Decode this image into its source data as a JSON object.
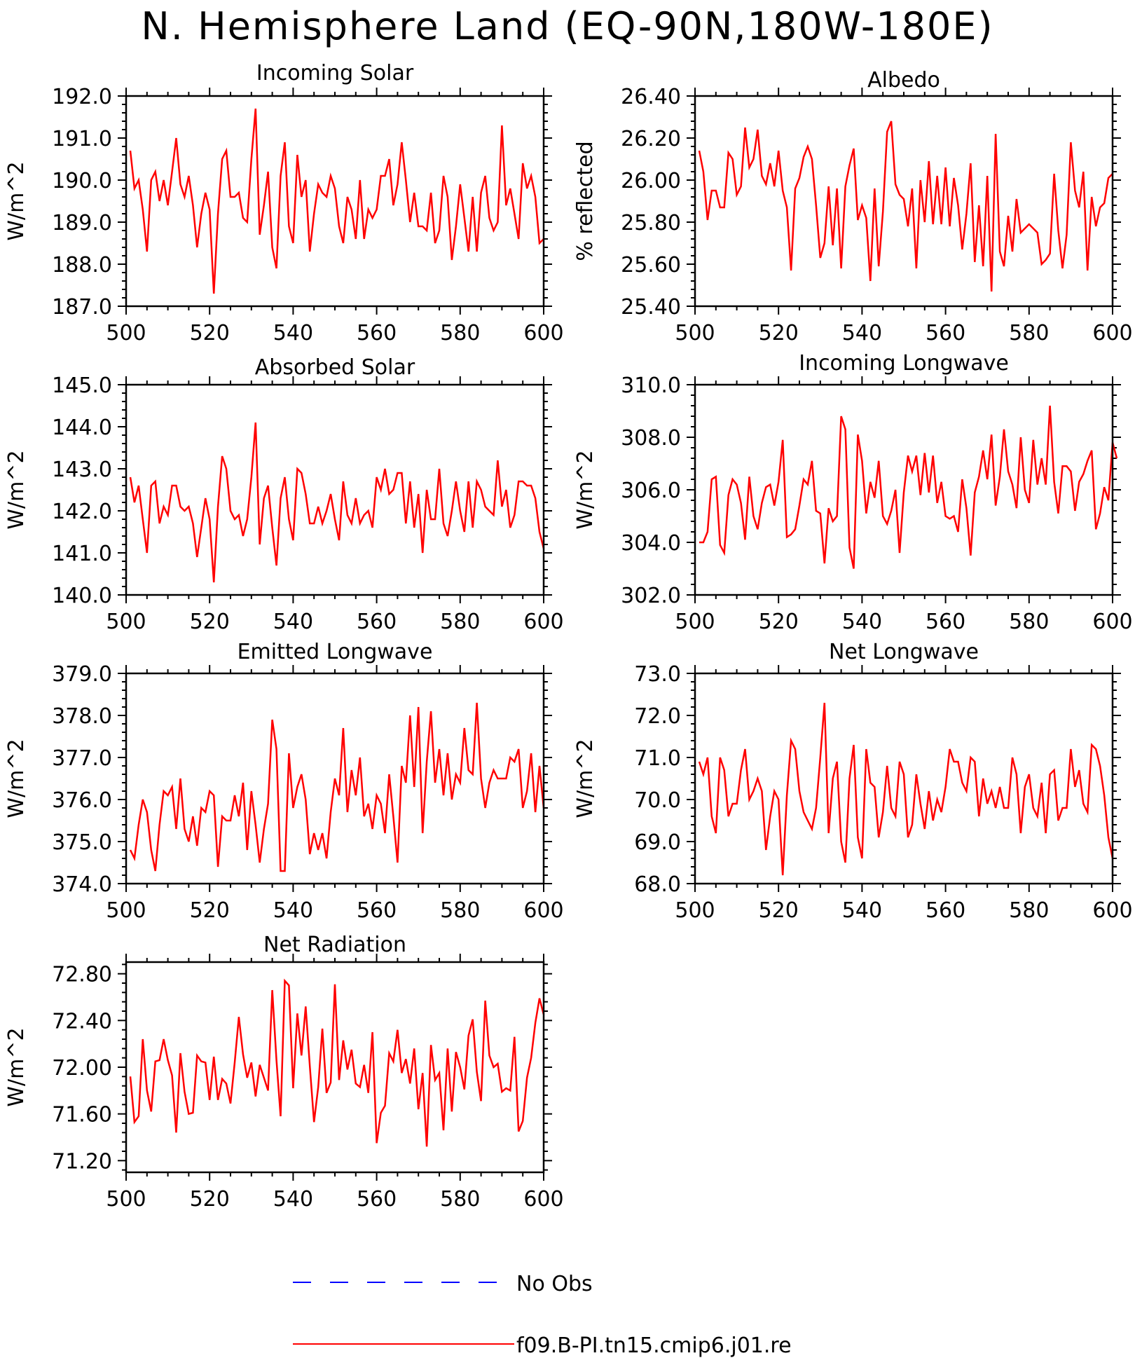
{
  "title": "N. Hemisphere Land (EQ-90N,180W-180E)",
  "colors": {
    "model": "#ff0000",
    "obs": "#0000ff",
    "axis": "#000000"
  },
  "legend": {
    "obs_label": "No Obs",
    "model_label": "f09.B-PI.tn15.cmip6.j01.re"
  },
  "chart_data": [
    {
      "type": "line",
      "title": "Incoming Solar",
      "xlabel": "",
      "ylabel": "W/m^2",
      "xlim": [
        500,
        600
      ],
      "ylim": [
        187.0,
        192.0
      ],
      "xticks": [
        "500",
        "520",
        "540",
        "560",
        "580",
        "600"
      ],
      "yticks": [
        "187.0",
        "188.0",
        "189.0",
        "190.0",
        "191.0",
        "192.0"
      ],
      "series": [
        {
          "x_start": 501,
          "values": [
            190.7,
            189.8,
            190.0,
            189.3,
            188.3,
            190.0,
            190.2,
            189.5,
            190.0,
            189.4,
            190.2,
            191.0,
            189.9,
            189.6,
            190.1,
            189.4,
            188.4,
            189.2,
            189.7,
            189.3,
            187.3,
            189.2,
            190.5,
            190.7,
            189.6,
            189.6,
            189.7,
            189.1,
            189.0,
            190.5,
            191.7,
            188.7,
            189.4,
            190.2,
            188.4,
            187.9,
            190.1,
            190.9,
            188.9,
            188.5,
            190.6,
            189.6,
            190.0,
            188.3,
            189.2,
            189.9,
            189.7,
            189.6,
            190.1,
            189.8,
            188.9,
            188.5,
            189.6,
            189.3,
            188.6,
            190.0,
            188.6,
            189.3,
            189.1,
            189.3,
            190.1,
            190.1,
            190.5,
            189.4,
            189.9,
            190.9,
            190.0,
            189.0,
            189.7,
            188.9,
            188.9,
            188.8,
            189.7,
            188.5,
            188.8,
            190.1,
            189.6,
            188.1,
            188.9,
            189.9,
            189.1,
            188.3,
            189.6,
            188.3,
            189.7,
            190.1,
            189.1,
            188.8,
            189.0,
            191.3,
            189.4,
            189.8,
            189.2,
            188.6,
            190.4,
            189.8,
            190.1,
            189.6,
            188.5,
            188.6
          ]
        }
      ]
    },
    {
      "type": "line",
      "title": "Albedo",
      "xlabel": "",
      "ylabel": "% reflected",
      "xlim": [
        500,
        600
      ],
      "ylim": [
        25.4,
        26.4
      ],
      "xticks": [
        "500",
        "520",
        "540",
        "560",
        "580",
        "600"
      ],
      "yticks": [
        "25.40",
        "25.60",
        "25.80",
        "26.00",
        "26.20",
        "26.40"
      ],
      "series": [
        {
          "x_start": 501,
          "values": [
            26.14,
            26.04,
            25.81,
            25.95,
            25.95,
            25.87,
            25.87,
            26.13,
            26.1,
            25.93,
            25.97,
            26.25,
            26.06,
            26.1,
            26.24,
            26.02,
            25.98,
            26.08,
            25.97,
            26.14,
            25.95,
            25.87,
            25.57,
            25.96,
            26.01,
            26.11,
            26.16,
            26.1,
            25.88,
            25.63,
            25.7,
            25.97,
            25.69,
            25.96,
            25.58,
            25.97,
            26.07,
            26.15,
            25.81,
            25.88,
            25.82,
            25.52,
            25.96,
            25.59,
            25.85,
            26.23,
            26.28,
            25.98,
            25.93,
            25.91,
            25.78,
            25.96,
            25.58,
            26.0,
            25.8,
            26.09,
            25.79,
            26.02,
            25.79,
            26.06,
            25.78,
            26.01,
            25.88,
            25.67,
            25.84,
            26.08,
            25.61,
            25.88,
            25.59,
            26.02,
            25.47,
            26.22,
            25.66,
            25.59,
            25.83,
            25.66,
            25.91,
            25.75,
            25.77,
            25.79,
            25.77,
            25.75,
            25.6,
            25.62,
            25.65,
            26.03,
            25.76,
            25.58,
            25.74,
            26.18,
            25.95,
            25.87,
            26.04,
            25.57,
            25.92,
            25.78,
            25.87,
            25.89,
            26.01,
            26.03
          ]
        }
      ]
    },
    {
      "type": "line",
      "title": "Absorbed Solar",
      "xlabel": "",
      "ylabel": "W/m^2",
      "xlim": [
        500,
        600
      ],
      "ylim": [
        140.0,
        145.0
      ],
      "xticks": [
        "500",
        "520",
        "540",
        "560",
        "580",
        "600"
      ],
      "yticks": [
        "140.0",
        "141.0",
        "142.0",
        "143.0",
        "144.0",
        "145.0"
      ],
      "series": [
        {
          "x_start": 501,
          "values": [
            142.8,
            142.2,
            142.6,
            141.8,
            141.0,
            142.6,
            142.7,
            141.7,
            142.1,
            141.9,
            142.6,
            142.6,
            142.1,
            142.0,
            142.1,
            141.7,
            140.9,
            141.6,
            142.3,
            141.8,
            140.3,
            142.1,
            143.3,
            143.0,
            142.0,
            141.8,
            141.9,
            141.4,
            141.8,
            142.8,
            144.1,
            141.2,
            142.3,
            142.6,
            141.6,
            140.7,
            142.3,
            142.8,
            141.8,
            141.3,
            143.0,
            142.9,
            142.4,
            141.7,
            141.7,
            142.1,
            141.7,
            142.0,
            142.4,
            141.8,
            141.3,
            142.7,
            141.9,
            141.7,
            142.3,
            141.7,
            141.9,
            142.0,
            141.6,
            142.8,
            142.5,
            143.0,
            142.4,
            142.5,
            142.9,
            142.9,
            141.7,
            142.7,
            141.6,
            142.4,
            141.0,
            142.5,
            141.8,
            141.8,
            143.0,
            141.7,
            141.4,
            142.0,
            142.7,
            142.0,
            141.5,
            142.7,
            141.6,
            142.7,
            142.5,
            142.1,
            142.0,
            141.9,
            143.2,
            142.1,
            142.5,
            141.6,
            141.9,
            142.7,
            142.7,
            142.6,
            142.6,
            142.3,
            141.5,
            141.1
          ]
        }
      ]
    },
    {
      "type": "line",
      "title": "Incoming Longwave",
      "xlabel": "",
      "ylabel": "W/m^2",
      "xlim": [
        500,
        600
      ],
      "ylim": [
        302.0,
        310.0
      ],
      "xticks": [
        "500",
        "520",
        "540",
        "560",
        "580",
        "600"
      ],
      "yticks": [
        "302.0",
        "304.0",
        "306.0",
        "308.0",
        "310.0"
      ],
      "series": [
        {
          "x_start": 501,
          "values": [
            304.0,
            304.0,
            304.4,
            306.4,
            306.5,
            303.9,
            303.6,
            305.8,
            306.4,
            306.2,
            305.5,
            304.1,
            306.5,
            305.0,
            304.5,
            305.5,
            306.1,
            306.2,
            305.4,
            306.3,
            307.9,
            304.2,
            304.3,
            304.5,
            305.4,
            306.4,
            306.2,
            307.1,
            305.2,
            305.1,
            303.2,
            305.3,
            304.8,
            305.0,
            308.8,
            308.3,
            303.8,
            303.0,
            308.1,
            307.1,
            305.1,
            306.3,
            305.7,
            307.1,
            305.0,
            304.7,
            305.2,
            306.0,
            303.6,
            305.9,
            307.3,
            306.7,
            307.3,
            305.8,
            307.4,
            305.9,
            307.3,
            305.5,
            306.3,
            305.0,
            304.9,
            305.0,
            304.4,
            306.4,
            305.3,
            303.5,
            305.9,
            306.5,
            307.5,
            306.4,
            308.1,
            305.4,
            306.5,
            308.3,
            306.7,
            306.2,
            305.3,
            308.0,
            306.0,
            305.5,
            307.9,
            306.2,
            307.2,
            306.2,
            309.2,
            306.3,
            305.1,
            306.9,
            306.9,
            306.7,
            305.2,
            306.3,
            306.6,
            307.1,
            307.5,
            304.5,
            305.1,
            306.1,
            305.6,
            307.8,
            307.2
          ]
        }
      ]
    },
    {
      "type": "line",
      "title": "Emitted Longwave",
      "xlabel": "",
      "ylabel": "W/m^2",
      "xlim": [
        500,
        600
      ],
      "ylim": [
        374.0,
        379.0
      ],
      "xticks": [
        "500",
        "520",
        "540",
        "560",
        "580",
        "600"
      ],
      "yticks": [
        "374.0",
        "375.0",
        "376.0",
        "377.0",
        "378.0",
        "379.0"
      ],
      "series": [
        {
          "x_start": 501,
          "values": [
            374.8,
            374.6,
            375.4,
            376.0,
            375.7,
            374.8,
            374.3,
            375.4,
            376.2,
            376.1,
            376.3,
            375.3,
            376.5,
            375.3,
            375.0,
            375.6,
            374.9,
            375.8,
            375.7,
            376.2,
            376.1,
            374.4,
            375.6,
            375.5,
            375.5,
            376.1,
            375.6,
            376.4,
            374.8,
            376.2,
            375.4,
            374.5,
            375.3,
            375.9,
            377.9,
            377.2,
            374.3,
            374.3,
            377.1,
            375.8,
            376.3,
            376.6,
            376.0,
            374.7,
            375.2,
            374.8,
            375.2,
            374.6,
            375.7,
            376.5,
            376.1,
            377.7,
            375.7,
            376.7,
            376.1,
            377.0,
            375.6,
            375.9,
            375.3,
            376.1,
            375.9,
            375.2,
            376.6,
            375.6,
            374.5,
            376.8,
            376.4,
            378.0,
            376.3,
            378.2,
            375.2,
            376.9,
            378.1,
            376.4,
            377.2,
            376.1,
            377.1,
            376.0,
            376.6,
            376.4,
            377.7,
            376.7,
            376.6,
            378.3,
            376.5,
            375.8,
            376.4,
            376.7,
            376.5,
            376.5,
            376.5,
            377.0,
            376.9,
            377.2,
            375.8,
            376.2,
            377.1,
            375.7,
            376.8,
            375.8
          ]
        }
      ]
    },
    {
      "type": "line",
      "title": "Net Longwave",
      "xlabel": "",
      "ylabel": "W/m^2",
      "xlim": [
        500,
        600
      ],
      "ylim": [
        68.0,
        73.0
      ],
      "xticks": [
        "500",
        "520",
        "540",
        "560",
        "580",
        "600"
      ],
      "yticks": [
        "68.0",
        "69.0",
        "70.0",
        "71.0",
        "72.0",
        "73.0"
      ],
      "series": [
        {
          "x_start": 501,
          "values": [
            70.9,
            70.6,
            71.0,
            69.6,
            69.2,
            71.0,
            70.7,
            69.6,
            69.9,
            69.9,
            70.7,
            71.2,
            70.0,
            70.2,
            70.5,
            70.2,
            68.8,
            69.6,
            70.2,
            70.0,
            68.2,
            70.1,
            71.4,
            71.2,
            70.2,
            69.7,
            69.5,
            69.3,
            69.8,
            71.0,
            72.3,
            69.2,
            70.5,
            70.9,
            69.0,
            68.5,
            70.5,
            71.3,
            69.1,
            68.6,
            71.2,
            70.4,
            70.3,
            69.1,
            69.7,
            70.8,
            69.8,
            69.6,
            70.9,
            70.6,
            69.1,
            69.4,
            70.6,
            69.9,
            69.3,
            70.2,
            69.5,
            70.0,
            69.7,
            70.3,
            71.2,
            70.9,
            70.9,
            70.4,
            70.2,
            71.0,
            70.9,
            69.6,
            70.5,
            69.9,
            70.2,
            69.8,
            70.3,
            69.8,
            69.8,
            71.0,
            70.6,
            69.2,
            70.3,
            70.6,
            69.8,
            69.6,
            70.4,
            69.2,
            70.6,
            70.7,
            69.5,
            69.8,
            69.8,
            71.2,
            70.3,
            70.7,
            69.9,
            69.7,
            71.3,
            71.2,
            70.8,
            70.1,
            69.1,
            68.6
          ]
        }
      ]
    },
    {
      "type": "line",
      "title": "Net Radiation",
      "xlabel": "",
      "ylabel": "W/m^2",
      "xlim": [
        500,
        600
      ],
      "ylim": [
        71.1,
        72.9
      ],
      "xticks": [
        "500",
        "520",
        "540",
        "560",
        "580",
        "600"
      ],
      "yticks": [
        "71.20",
        "71.60",
        "72.00",
        "72.40",
        "72.80"
      ],
      "series": [
        {
          "x_start": 501,
          "values": [
            71.92,
            71.53,
            71.58,
            72.24,
            71.8,
            71.62,
            72.05,
            72.06,
            72.24,
            72.06,
            71.93,
            71.44,
            72.12,
            71.79,
            71.6,
            71.61,
            72.1,
            72.05,
            72.04,
            71.72,
            72.09,
            71.72,
            71.9,
            71.86,
            71.69,
            72.04,
            72.43,
            72.11,
            71.91,
            72.04,
            71.75,
            72.02,
            71.91,
            71.8,
            72.66,
            72.06,
            71.58,
            72.74,
            72.7,
            71.82,
            72.46,
            72.1,
            72.52,
            72.01,
            71.53,
            71.83,
            72.33,
            71.78,
            71.87,
            72.71,
            71.89,
            72.23,
            71.98,
            72.15,
            71.86,
            71.83,
            72.02,
            71.78,
            72.3,
            71.35,
            71.61,
            71.67,
            72.12,
            72.05,
            72.32,
            71.95,
            72.07,
            71.86,
            72.16,
            71.64,
            71.95,
            71.32,
            72.19,
            71.89,
            71.95,
            71.46,
            72.16,
            71.62,
            72.13,
            72.0,
            71.81,
            72.27,
            72.41,
            71.96,
            71.71,
            72.57,
            72.1,
            72.0,
            72.03,
            71.79,
            71.82,
            71.8,
            72.26,
            71.45,
            71.54,
            71.91,
            72.08,
            72.38,
            72.59,
            72.45
          ]
        }
      ]
    }
  ]
}
